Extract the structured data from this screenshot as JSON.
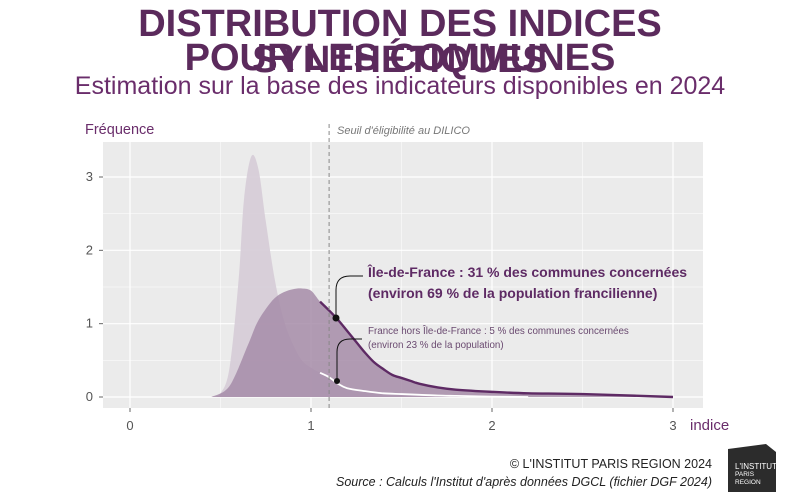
{
  "header": {
    "title_line1": "DISTRIBUTION DES INDICES SYNTHÉTIQUES",
    "title_line2": "POUR LES COMMUNES",
    "subtitle": "Estimation sur la base des indicateurs disponibles en 2024"
  },
  "footer": {
    "copyright": "© L'INSTITUT PARIS REGION 2024",
    "source": "Source : Calculs l'Institut d'après données DGCL (fichier DGF 2024)"
  },
  "logo": {
    "line1": "L'INSTITUT",
    "line2": "PARIS",
    "line3": "REGION"
  },
  "colors": {
    "title": "#5b2a5c",
    "france_area": "#d7cdd8",
    "idf_area": "#a68ca8",
    "idf_line": "#5e2a64",
    "panel_bg": "#ebebeb"
  },
  "chart_data": {
    "type": "area",
    "ylabel": "Fréquence",
    "xlabel": "indice",
    "xlim": [
      0,
      3
    ],
    "ylim": [
      0,
      3.4
    ],
    "x_ticks": [
      "0",
      "1",
      "2",
      "3"
    ],
    "y_ticks": [
      "0",
      "1",
      "2",
      "3"
    ],
    "grid": true,
    "threshold": {
      "x": 1.1,
      "label": "Seuil d'éligibilité  au DILICO"
    },
    "series": [
      {
        "name": "France hors Île-de-France",
        "x": [
          0.45,
          0.5,
          0.55,
          0.6,
          0.63,
          0.67,
          0.71,
          0.75,
          0.8,
          0.85,
          0.9,
          0.95,
          1.0,
          1.05,
          1.1,
          1.15,
          1.2,
          1.3,
          1.4,
          1.5,
          1.6,
          1.7,
          1.8,
          1.9,
          2.0,
          2.2
        ],
        "values": [
          0.0,
          0.05,
          0.4,
          1.6,
          2.7,
          3.28,
          3.1,
          2.4,
          1.6,
          1.05,
          0.72,
          0.5,
          0.4,
          0.33,
          0.27,
          0.18,
          0.12,
          0.08,
          0.05,
          0.04,
          0.03,
          0.02,
          0.015,
          0.01,
          0.005,
          0.0
        ]
      },
      {
        "name": "Île-de-France",
        "x": [
          0.45,
          0.55,
          0.65,
          0.7,
          0.75,
          0.8,
          0.85,
          0.9,
          0.95,
          1.0,
          1.05,
          1.1,
          1.15,
          1.2,
          1.25,
          1.3,
          1.35,
          1.4,
          1.45,
          1.5,
          1.55,
          1.6,
          1.7,
          1.8,
          2.0,
          2.2,
          2.5,
          3.0
        ],
        "values": [
          0.0,
          0.15,
          0.7,
          1.0,
          1.2,
          1.35,
          1.43,
          1.47,
          1.48,
          1.45,
          1.3,
          1.18,
          1.05,
          0.9,
          0.75,
          0.6,
          0.47,
          0.38,
          0.3,
          0.26,
          0.22,
          0.18,
          0.13,
          0.1,
          0.07,
          0.05,
          0.04,
          0.0
        ]
      }
    ],
    "annotations": {
      "idf_line1": "Île-de-France : 31 % des communes concernées",
      "idf_line2": "(environ 69 % de la population francilienne)",
      "france_line1": "France hors Île-de-France : 5 % des communes concernées",
      "france_line2": "(environ 23 % de la population)"
    }
  }
}
